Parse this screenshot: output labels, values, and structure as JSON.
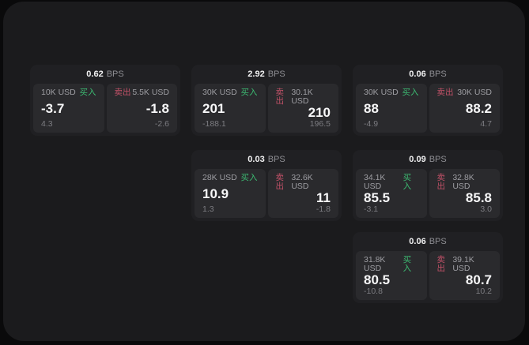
{
  "labels": {
    "unit": "BPS",
    "buy": "买入",
    "sell": "卖出"
  },
  "colors": {
    "buy_accent": "#3cbb72",
    "sell_accent": "#c25168",
    "surface": "#1b1b1d",
    "card": "#202023",
    "panel": "#2a2a2d"
  },
  "cards": [
    {
      "row": 0,
      "col": 0,
      "bps": "0.62",
      "buy": {
        "amount": "10K USD",
        "value": "-3.7",
        "delta": "4.3"
      },
      "sell": {
        "amount": "5.5K USD",
        "value": "-1.8",
        "delta": "-2.6"
      }
    },
    {
      "row": 0,
      "col": 1,
      "bps": "2.92",
      "buy": {
        "amount": "30K USD",
        "value": "201",
        "delta": "-188.1"
      },
      "sell": {
        "amount": "30.1K USD",
        "value": "210",
        "delta": "196.5"
      }
    },
    {
      "row": 0,
      "col": 2,
      "bps": "0.06",
      "buy": {
        "amount": "30K USD",
        "value": "88",
        "delta": "-4.9"
      },
      "sell": {
        "amount": "30K USD",
        "value": "88.2",
        "delta": "4.7"
      }
    },
    {
      "row": 1,
      "col": 1,
      "bps": "0.03",
      "buy": {
        "amount": "28K USD",
        "value": "10.9",
        "delta": "1.3"
      },
      "sell": {
        "amount": "32.6K USD",
        "value": "11",
        "delta": "-1.8"
      }
    },
    {
      "row": 1,
      "col": 2,
      "bps": "0.09",
      "buy": {
        "amount": "34.1K USD",
        "value": "85.5",
        "delta": "-3.1"
      },
      "sell": {
        "amount": "32.8K USD",
        "value": "85.8",
        "delta": "3.0"
      }
    },
    {
      "row": 2,
      "col": 2,
      "bps": "0.06",
      "buy": {
        "amount": "31.8K USD",
        "value": "80.5",
        "delta": "-10.8"
      },
      "sell": {
        "amount": "39.1K USD",
        "value": "80.7",
        "delta": "10.2"
      }
    }
  ]
}
